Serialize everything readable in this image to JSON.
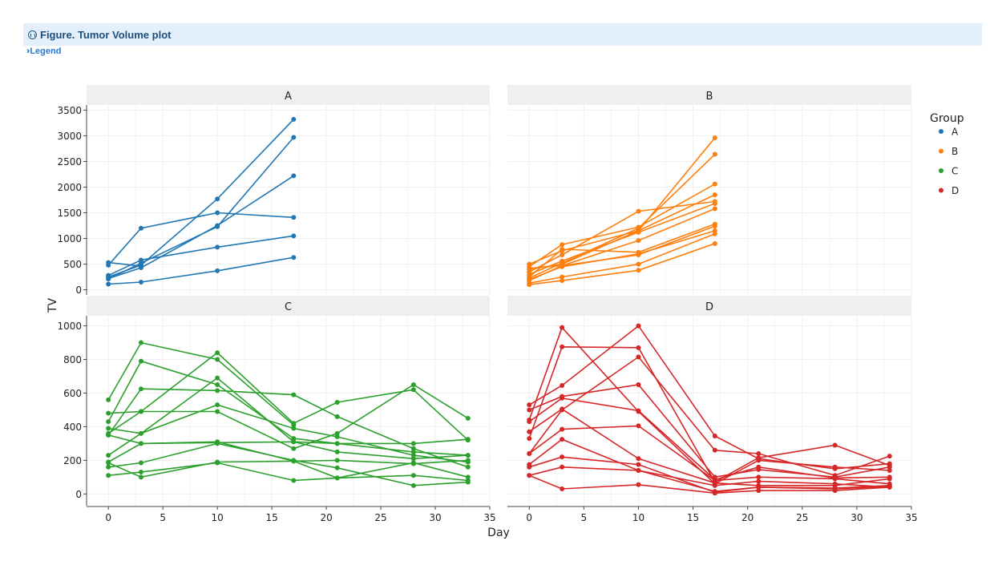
{
  "figure": {
    "title": "Figure. Tumor Volume plot",
    "legend_link": "Legend"
  },
  "chart_data": {
    "type": "line",
    "title": "",
    "xlabel": "Day",
    "ylabel": "TV",
    "legend": {
      "title": "Group",
      "placement": "right",
      "entries": [
        {
          "label": "A",
          "color": "#1f77b4"
        },
        {
          "label": "B",
          "color": "#ff7f0e"
        },
        {
          "label": "C",
          "color": "#2ca02c"
        },
        {
          "label": "D",
          "color": "#d62728"
        }
      ]
    },
    "x_ticks": [
      0,
      5,
      10,
      15,
      20,
      25,
      30,
      35
    ],
    "xlim": [
      -2,
      35
    ],
    "panels": [
      {
        "name": "A",
        "color": "#1f77b4",
        "ylim": [
          -100,
          3600
        ],
        "y_ticks": [
          0,
          500,
          1000,
          1500,
          2000,
          2500,
          3000,
          3500
        ],
        "series": [
          {
            "x": [
              0,
              3,
              10,
              17
            ],
            "y": [
              250,
              480,
              1770,
              3320
            ]
          },
          {
            "x": [
              0,
              3,
              10,
              17
            ],
            "y": [
              210,
              520,
              1230,
              2970
            ]
          },
          {
            "x": [
              0,
              3,
              10,
              17
            ],
            "y": [
              220,
              430,
              1250,
              2220
            ]
          },
          {
            "x": [
              0,
              3,
              10,
              17
            ],
            "y": [
              480,
              1200,
              1500,
              1410
            ]
          },
          {
            "x": [
              0,
              3
            ],
            "y": [
              530,
              460
            ]
          },
          {
            "x": [
              0,
              3,
              10,
              17
            ],
            "y": [
              280,
              580,
              830,
              1050
            ]
          },
          {
            "x": [
              0,
              3,
              10,
              17
            ],
            "y": [
              110,
              150,
              370,
              630
            ]
          }
        ]
      },
      {
        "name": "B",
        "color": "#ff7f0e",
        "ylim": [
          -100,
          3600
        ],
        "y_ticks": [
          0,
          500,
          1000,
          1500,
          2000,
          2500,
          3000,
          3500
        ],
        "series": [
          {
            "x": [
              0,
              3,
              10,
              17
            ],
            "y": [
              400,
              500,
              1150,
              2960
            ]
          },
          {
            "x": [
              0,
              3,
              10,
              17
            ],
            "y": [
              230,
              520,
              1200,
              2640
            ]
          },
          {
            "x": [
              0,
              3,
              10,
              17
            ],
            "y": [
              450,
              880,
              1220,
              2060
            ]
          },
          {
            "x": [
              0,
              3,
              10,
              17
            ],
            "y": [
              500,
              760,
              1150,
              1850
            ]
          },
          {
            "x": [
              0,
              3,
              10,
              17
            ],
            "y": [
              350,
              680,
              1530,
              1720
            ]
          },
          {
            "x": [
              0,
              3,
              10,
              17
            ],
            "y": [
              300,
              560,
              1120,
              1680
            ]
          },
          {
            "x": [
              0,
              3,
              10,
              17
            ],
            "y": [
              180,
              470,
              960,
              1580
            ]
          },
          {
            "x": [
              0,
              3,
              10,
              17
            ],
            "y": [
              250,
              790,
              730,
              1280
            ]
          },
          {
            "x": [
              0,
              3,
              10,
              17
            ],
            "y": [
              420,
              470,
              680,
              1240
            ]
          },
          {
            "x": [
              0,
              3,
              10,
              17
            ],
            "y": [
              200,
              450,
              700,
              1150
            ]
          },
          {
            "x": [
              0,
              3,
              10,
              17
            ],
            "y": [
              130,
              250,
              500,
              1090
            ]
          },
          {
            "x": [
              0,
              3,
              10,
              17
            ],
            "y": [
              100,
              180,
              380,
              900
            ]
          }
        ]
      },
      {
        "name": "C",
        "color": "#2ca02c",
        "ylim": [
          -70,
          1060
        ],
        "y_ticks": [
          0,
          200,
          400,
          600,
          800,
          1000
        ],
        "series": [
          {
            "x": [
              0,
              3,
              10,
              17
            ],
            "y": [
              560,
              900,
              800,
              410
            ]
          },
          {
            "x": [
              0,
              3,
              10,
              17,
              21,
              28,
              33
            ],
            "y": [
              430,
              790,
              650,
              330,
              300,
              250,
              230
            ]
          },
          {
            "x": [
              0,
              3,
              10,
              17,
              21,
              28,
              33
            ],
            "y": [
              350,
              625,
              615,
              590,
              460,
              270,
              160
            ]
          },
          {
            "x": [
              0,
              3,
              10,
              17,
              21,
              28,
              33
            ],
            "y": [
              480,
              490,
              490,
              270,
              360,
              650,
              450
            ]
          },
          {
            "x": [
              0,
              3,
              10,
              17,
              21,
              28,
              33
            ],
            "y": [
              360,
              490,
              840,
              420,
              545,
              620,
              320
            ]
          },
          {
            "x": [
              0,
              3,
              10,
              17,
              21,
              28,
              33
            ],
            "y": [
              390,
              360,
              530,
              390,
              340,
              230,
              190
            ]
          },
          {
            "x": [
              0,
              3,
              10,
              17,
              21,
              28,
              33
            ],
            "y": [
              230,
              360,
              690,
              310,
              250,
              210,
              230
            ]
          },
          {
            "x": [
              0,
              3,
              10,
              17,
              21,
              28,
              33
            ],
            "y": [
              190,
              300,
              305,
              310,
              300,
              300,
              325
            ]
          },
          {
            "x": [
              0,
              3,
              10,
              17,
              21,
              28,
              33
            ],
            "y": [
              160,
              185,
              300,
              200,
              155,
              50,
              70
            ]
          },
          {
            "x": [
              0,
              3,
              10,
              17,
              21,
              28,
              33
            ],
            "y": [
              185,
              100,
              190,
              195,
              200,
              180,
              200
            ]
          },
          {
            "x": [
              0,
              3,
              10,
              17,
              21,
              28,
              33
            ],
            "y": [
              110,
              130,
              185,
              80,
              95,
              185,
              100
            ]
          },
          {
            "x": [
              0,
              3,
              10,
              17,
              21,
              28,
              33
            ],
            "y": [
              350,
              300,
              310,
              195,
              95,
              110,
              80
            ]
          }
        ]
      },
      {
        "name": "D",
        "color": "#d62728",
        "ylim": [
          -70,
          1060
        ],
        "y_ticks": [
          0,
          200,
          400,
          600,
          800,
          1000
        ],
        "series": [
          {
            "x": [
              0,
              3,
              10,
              17,
              21,
              28,
              33
            ],
            "y": [
              440,
              990,
              490,
              60,
              200,
              160,
              140
            ]
          },
          {
            "x": [
              0,
              3,
              10,
              17,
              21,
              28,
              33
            ],
            "y": [
              330,
              875,
              870,
              70,
              215,
              290,
              170
            ]
          },
          {
            "x": [
              0,
              3,
              10,
              17,
              21,
              28,
              33
            ],
            "y": [
              530,
              645,
              1000,
              345,
              210,
              150,
              180
            ]
          },
          {
            "x": [
              0,
              3,
              10,
              17,
              21,
              28,
              33
            ],
            "y": [
              240,
              500,
              815,
              260,
              240,
              110,
              225
            ]
          },
          {
            "x": [
              0,
              3,
              10,
              17,
              21,
              28,
              33
            ],
            "y": [
              500,
              580,
              650,
              100,
              145,
              100,
              160
            ]
          },
          {
            "x": [
              0,
              3,
              10,
              17,
              21,
              28,
              33
            ],
            "y": [
              430,
              570,
              495,
              85,
              160,
              95,
              100
            ]
          },
          {
            "x": [
              0,
              3,
              10,
              17,
              21,
              28,
              33
            ],
            "y": [
              370,
              505,
              210,
              65,
              50,
              50,
              90
            ]
          },
          {
            "x": [
              0,
              3,
              10,
              17,
              21,
              28,
              33
            ],
            "y": [
              240,
              385,
              405,
              80,
              100,
              90,
              60
            ]
          },
          {
            "x": [
              0,
              3,
              10,
              17,
              21,
              28,
              33
            ],
            "y": [
              175,
              325,
              140,
              50,
              75,
              60,
              40
            ]
          },
          {
            "x": [
              0,
              3,
              10,
              17,
              21,
              28,
              33
            ],
            "y": [
              160,
              220,
              175,
              10,
              40,
              35,
              50
            ]
          },
          {
            "x": [
              0,
              3,
              10,
              17,
              21,
              28,
              33
            ],
            "y": [
              110,
              160,
              140,
              15,
              40,
              30,
              45
            ]
          },
          {
            "x": [
              0,
              3,
              10,
              17,
              21,
              28,
              33
            ],
            "y": [
              110,
              30,
              55,
              5,
              20,
              20,
              40
            ]
          }
        ]
      }
    ]
  }
}
